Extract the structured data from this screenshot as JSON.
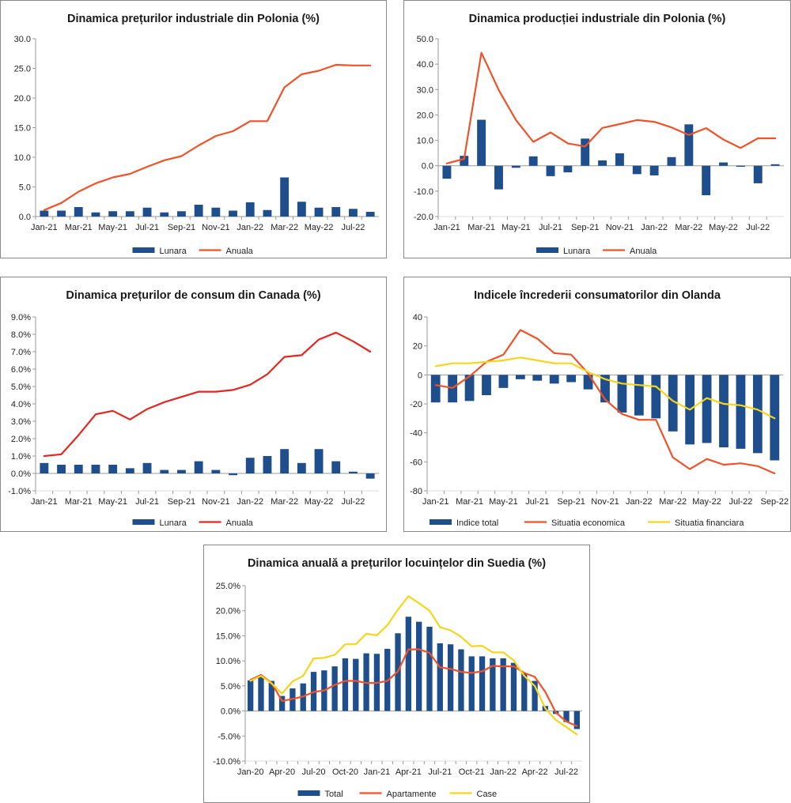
{
  "chart_data": [
    {
      "type": "bar+line",
      "title": "Dinamica prețurilor industriale din Polonia (%)",
      "xlabel": "",
      "ylabel": "",
      "x": [
        "Jan-21",
        "Feb-21",
        "Mar-21",
        "Apr-21",
        "May-21",
        "Jun-21",
        "Jul-21",
        "Aug-21",
        "Sep-21",
        "Oct-21",
        "Nov-21",
        "Dec-21",
        "Jan-22",
        "Feb-22",
        "Mar-22",
        "Apr-22",
        "May-22",
        "Jun-22",
        "Jul-22",
        "Aug-22"
      ],
      "tick_labels": [
        "Jan-21",
        "Mar-21",
        "May-21",
        "Jul-21",
        "Sep-21",
        "Nov-21",
        "Jan-22",
        "Mar-22",
        "May-22",
        "Jul-22"
      ],
      "y_tick_labels": [
        "0.0",
        "5.0",
        "10.0",
        "15.0",
        "20.0",
        "25.0",
        "30.0"
      ],
      "ylim": [
        0,
        30
      ],
      "ytick_step": 5,
      "grid": false,
      "legend_position": "bottom",
      "series": [
        {
          "name": "Lunara",
          "kind": "bar",
          "color": "#1f4e8c",
          "values": [
            1.0,
            1.0,
            1.6,
            0.7,
            0.9,
            0.9,
            1.5,
            0.7,
            0.9,
            2.0,
            1.5,
            1.0,
            2.4,
            1.1,
            6.6,
            2.5,
            1.5,
            1.6,
            1.3,
            0.8
          ]
        },
        {
          "name": "Anuala",
          "kind": "line",
          "color": "#f0522a",
          "values": [
            1.1,
            2.3,
            4.2,
            5.6,
            6.6,
            7.2,
            8.4,
            9.5,
            10.2,
            12.0,
            13.6,
            14.4,
            16.1,
            16.1,
            21.8,
            24.0,
            24.6,
            25.6,
            25.5,
            25.5
          ]
        }
      ]
    },
    {
      "type": "bar+line",
      "title": "Dinamica producției industriale din Polonia (%)",
      "xlabel": "",
      "ylabel": "",
      "x": [
        "Jan-21",
        "Feb-21",
        "Mar-21",
        "Apr-21",
        "May-21",
        "Jun-21",
        "Jul-21",
        "Aug-21",
        "Sep-21",
        "Oct-21",
        "Nov-21",
        "Dec-21",
        "Jan-22",
        "Feb-22",
        "Mar-22",
        "Apr-22",
        "May-22",
        "Jun-22",
        "Jul-22",
        "Aug-22"
      ],
      "tick_labels": [
        "Jan-21",
        "Mar-21",
        "May-21",
        "Jul-21",
        "Sep-21",
        "Nov-21",
        "Jan-22",
        "Mar-22",
        "May-22",
        "Jul-22"
      ],
      "y_tick_labels": [
        "-20.0",
        "-10.0",
        "0.0",
        "10.0",
        "20.0",
        "30.0",
        "40.0",
        "50.0"
      ],
      "ylim": [
        -20,
        50
      ],
      "ytick_step": 10,
      "grid": false,
      "legend_position": "bottom",
      "series": [
        {
          "name": "Lunara",
          "kind": "bar",
          "color": "#1f4e8c",
          "values": [
            -5.1,
            3.9,
            18.1,
            -9.3,
            -0.8,
            3.7,
            -4.1,
            -2.6,
            10.7,
            2.1,
            4.9,
            -3.3,
            -3.8,
            3.4,
            16.3,
            -11.6,
            1.3,
            -0.4,
            -6.9,
            0.6
          ]
        },
        {
          "name": "Anuala",
          "kind": "line",
          "color": "#f0522a",
          "values": [
            0.9,
            2.7,
            44.5,
            29.8,
            18.0,
            9.4,
            13.1,
            8.8,
            7.6,
            14.9,
            16.4,
            18.0,
            17.3,
            15.1,
            12.1,
            14.8,
            10.3,
            7.0,
            10.8,
            10.8
          ]
        }
      ]
    },
    {
      "type": "bar+line",
      "title": "Dinamica prețurilor de consum din Canada (%)",
      "xlabel": "",
      "ylabel": "",
      "x": [
        "Jan-21",
        "Feb-21",
        "Mar-21",
        "Apr-21",
        "May-21",
        "Jun-21",
        "Jul-21",
        "Aug-21",
        "Sep-21",
        "Oct-21",
        "Nov-21",
        "Dec-21",
        "Jan-22",
        "Feb-22",
        "Mar-22",
        "Apr-22",
        "May-22",
        "Jun-22",
        "Jul-22",
        "Aug-22"
      ],
      "tick_labels": [
        "Jan-21",
        "Mar-21",
        "May-21",
        "Jul-21",
        "Sep-21",
        "Nov-21",
        "Jan-22",
        "Mar-22",
        "May-22",
        "Jul-22"
      ],
      "y_tick_labels": [
        "-1.0%",
        "0.0%",
        "1.0%",
        "2.0%",
        "3.0%",
        "4.0%",
        "5.0%",
        "6.0%",
        "7.0%",
        "8.0%",
        "9.0%"
      ],
      "ylim": [
        -1,
        9
      ],
      "ytick_step": 1,
      "grid": false,
      "legend_position": "bottom",
      "series": [
        {
          "name": "Lunara",
          "kind": "bar",
          "color": "#1f4e8c",
          "values": [
            0.6,
            0.5,
            0.5,
            0.5,
            0.5,
            0.3,
            0.6,
            0.2,
            0.2,
            0.7,
            0.2,
            -0.1,
            0.9,
            1.0,
            1.4,
            0.6,
            1.4,
            0.7,
            0.1,
            -0.3
          ]
        },
        {
          "name": "Anuala",
          "kind": "line",
          "color": "#e52620",
          "values": [
            1.0,
            1.1,
            2.2,
            3.4,
            3.6,
            3.1,
            3.7,
            4.1,
            4.4,
            4.7,
            4.7,
            4.8,
            5.1,
            5.7,
            6.7,
            6.8,
            7.7,
            8.1,
            7.6,
            7.0
          ]
        }
      ]
    },
    {
      "type": "bar+line",
      "title": "Indicele încrederii consumatorilor din Olanda",
      "xlabel": "",
      "ylabel": "",
      "x": [
        "Jan-21",
        "Feb-21",
        "Mar-21",
        "Apr-21",
        "May-21",
        "Jun-21",
        "Jul-21",
        "Aug-21",
        "Sep-21",
        "Oct-21",
        "Nov-21",
        "Dec-21",
        "Jan-22",
        "Feb-22",
        "Mar-22",
        "Apr-22",
        "May-22",
        "Jun-22",
        "Jul-22",
        "Aug-22",
        "Sep-22"
      ],
      "tick_labels": [
        "Jan-21",
        "Mar-21",
        "May-21",
        "Jul-21",
        "Sep-21",
        "Nov-21",
        "Jan-22",
        "Mar-22",
        "May-22",
        "Jul-22",
        "Sep-22"
      ],
      "y_tick_labels": [
        "-80",
        "-60",
        "-40",
        "-20",
        "0",
        "20",
        "40"
      ],
      "ylim": [
        -80,
        40
      ],
      "ytick_step": 20,
      "grid": false,
      "legend_position": "bottom",
      "series": [
        {
          "name": "Indice total",
          "kind": "bar",
          "color": "#1f4e8c",
          "values": [
            -19,
            -19,
            -18,
            -14,
            -9,
            -3,
            -4,
            -6,
            -5,
            -10,
            -19,
            -26,
            -28,
            -30,
            -39,
            -48,
            -47,
            -50,
            -51,
            -54,
            -59
          ]
        },
        {
          "name": "Situatia economica",
          "kind": "line",
          "color": "#f0522a",
          "values": [
            -7,
            -9,
            -1,
            9,
            14,
            31,
            25,
            15,
            14,
            1,
            -17,
            -27,
            -31,
            -31,
            -57,
            -65,
            -58,
            -62,
            -61,
            -63,
            -68
          ]
        },
        {
          "name": "Situatia financiara",
          "kind": "line",
          "color": "#f7d51c",
          "values": [
            6,
            8,
            8,
            9,
            10,
            12,
            10,
            8,
            8,
            2,
            -3,
            -6,
            -7,
            -8,
            -18,
            -24,
            -16,
            -20,
            -21,
            -24,
            -30
          ]
        }
      ]
    },
    {
      "type": "bar+line",
      "title": "Dinamica anuală a prețurilor locuințelor din Suedia (%)",
      "xlabel": "",
      "ylabel": "",
      "x": [
        "Jan-20",
        "Feb-20",
        "Mar-20",
        "Apr-20",
        "May-20",
        "Jun-20",
        "Jul-20",
        "Aug-20",
        "Sep-20",
        "Oct-20",
        "Nov-20",
        "Dec-20",
        "Jan-21",
        "Feb-21",
        "Mar-21",
        "Apr-21",
        "May-21",
        "Jun-21",
        "Jul-21",
        "Aug-21",
        "Sep-21",
        "Oct-21",
        "Nov-21",
        "Dec-21",
        "Jan-22",
        "Feb-22",
        "Mar-22",
        "Apr-22",
        "May-22",
        "Jun-22",
        "Jul-22",
        "Aug-22"
      ],
      "tick_labels": [
        "Jan-20",
        "Apr-20",
        "Jul-20",
        "Oct-20",
        "Jan-21",
        "Apr-21",
        "Jul-21",
        "Oct-21",
        "Jan-22",
        "Apr-22",
        "Jul-22"
      ],
      "y_tick_labels": [
        "-10.0%",
        "-5.0%",
        "0.0%",
        "5.0%",
        "10.0%",
        "15.0%",
        "20.0%",
        "25.0%"
      ],
      "ylim": [
        -10,
        25
      ],
      "ytick_step": 5,
      "grid": false,
      "legend_position": "bottom",
      "series": [
        {
          "name": "Total",
          "kind": "bar",
          "color": "#1f4e8c",
          "values": [
            6.1,
            6.9,
            6.0,
            3.0,
            4.5,
            5.5,
            7.8,
            8.1,
            8.9,
            10.5,
            10.4,
            11.5,
            11.4,
            12.4,
            15.5,
            18.8,
            17.8,
            16.8,
            13.5,
            13.3,
            12.3,
            10.9,
            10.9,
            10.5,
            10.5,
            9.6,
            7.5,
            6.0,
            1.0,
            -0.6,
            -2.2,
            -3.6
          ]
        },
        {
          "name": "Apartamente",
          "kind": "line",
          "color": "#f0522a",
          "values": [
            6.2,
            7.2,
            5.6,
            2.0,
            2.4,
            2.9,
            3.8,
            4.1,
            5.2,
            6.0,
            6.0,
            5.6,
            5.6,
            6.0,
            7.9,
            12.3,
            12.3,
            11.6,
            8.7,
            8.4,
            7.8,
            7.6,
            7.9,
            9.0,
            8.9,
            8.9,
            7.6,
            6.8,
            3.8,
            -0.3,
            -2.1,
            -3.0
          ]
        },
        {
          "name": "Case",
          "kind": "line",
          "color": "#f7d51c",
          "values": [
            6.0,
            7.0,
            5.5,
            3.5,
            5.9,
            7.0,
            10.5,
            10.6,
            11.2,
            13.3,
            13.3,
            15.4,
            15.1,
            17.1,
            20.2,
            22.9,
            21.5,
            20.0,
            16.7,
            16.1,
            14.8,
            12.9,
            13.0,
            11.7,
            11.7,
            10.1,
            7.0,
            5.0,
            0.5,
            -1.8,
            -3.2,
            -4.7
          ]
        }
      ]
    }
  ]
}
